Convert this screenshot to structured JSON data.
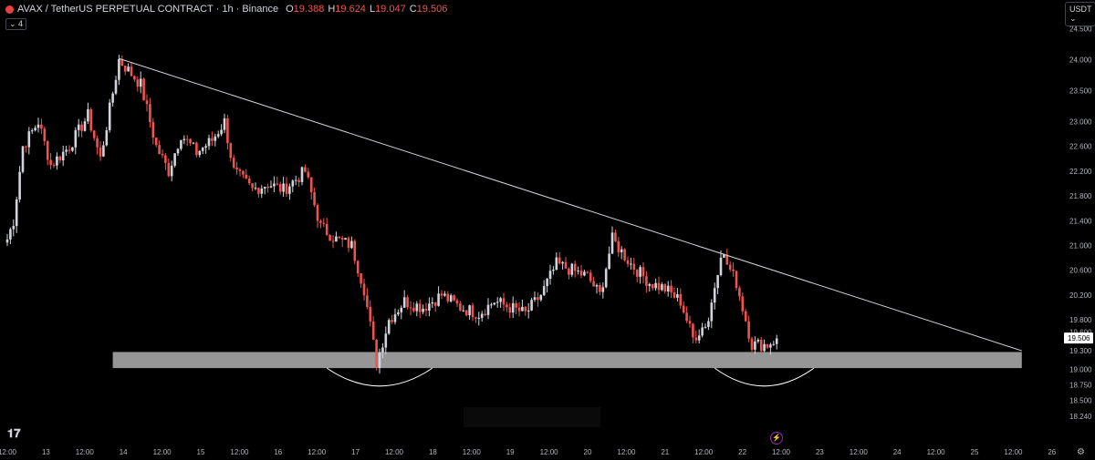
{
  "header": {
    "symbol": "AVAX / TetherUS PERPETUAL CONTRACT · 1h · Binance",
    "o_label": "O",
    "o_value": "19.388",
    "h_label": "H",
    "h_value": "19.624",
    "l_label": "L",
    "l_value": "19.047",
    "c_label": "C",
    "c_value": "19.506",
    "indicators_toggle": "⌄ 4",
    "currency": "USDT ⌄"
  },
  "colors": {
    "up": "#d1d4dc",
    "down": "#ef5350",
    "line": "#d1d4dc",
    "zone": "#9e9e9e",
    "background": "#000000"
  },
  "icons": {
    "logo": "tradingview-logo-icon",
    "settings": "gear-icon",
    "alert": "lightning-icon"
  },
  "chart_data": {
    "type": "candlestick",
    "interval": "1h",
    "ylim": [
      18.08,
      24.7
    ],
    "y_ticks": [
      "24.500",
      "24.000",
      "23.500",
      "23.000",
      "22.600",
      "22.200",
      "21.800",
      "21.400",
      "21.000",
      "20.600",
      "20.200",
      "19.800",
      "19.600",
      "19.300",
      "19.000",
      "18.750",
      "18.500",
      "18.240"
    ],
    "x_ticks": [
      "12:00",
      "13",
      "12:00",
      "14",
      "12:00",
      "15",
      "12:00",
      "16",
      "12:00",
      "17",
      "12:00",
      "18",
      "12:00",
      "19",
      "12:00",
      "20",
      "12:00",
      "21",
      "12:00",
      "22",
      "12:00",
      "23",
      "12:00",
      "24",
      "12:00",
      "25",
      "12:00",
      "26"
    ],
    "last_price": "19.506",
    "close_path": [
      [
        0,
        21.1
      ],
      [
        2,
        21.4
      ],
      [
        5,
        22.6
      ],
      [
        10,
        23.0
      ],
      [
        14,
        22.3
      ],
      [
        20,
        22.6
      ],
      [
        26,
        23.1
      ],
      [
        30,
        22.4
      ],
      [
        36,
        24.0
      ],
      [
        43,
        23.6
      ],
      [
        48,
        22.6
      ],
      [
        52,
        22.2
      ],
      [
        56,
        22.8
      ],
      [
        61,
        22.5
      ],
      [
        66,
        22.7
      ],
      [
        70,
        23.0
      ],
      [
        73,
        22.2
      ],
      [
        79,
        21.9
      ],
      [
        84,
        22.0
      ],
      [
        89,
        21.9
      ],
      [
        96,
        22.2
      ],
      [
        101,
        21.3
      ],
      [
        106,
        21.1
      ],
      [
        111,
        21.0
      ],
      [
        115,
        20.3
      ],
      [
        119,
        19.1
      ],
      [
        123,
        19.8
      ],
      [
        128,
        20.1
      ],
      [
        134,
        20.0
      ],
      [
        140,
        20.2
      ],
      [
        146,
        20.0
      ],
      [
        152,
        19.9
      ],
      [
        157,
        20.1
      ],
      [
        162,
        20.0
      ],
      [
        167,
        19.9
      ],
      [
        172,
        20.2
      ],
      [
        177,
        20.7
      ],
      [
        182,
        20.6
      ],
      [
        187,
        20.5
      ],
      [
        191,
        20.2
      ],
      [
        195,
        21.1
      ],
      [
        201,
        20.7
      ],
      [
        207,
        20.4
      ],
      [
        212,
        20.3
      ],
      [
        217,
        20.1
      ],
      [
        221,
        19.5
      ],
      [
        226,
        19.8
      ],
      [
        230,
        20.9
      ],
      [
        235,
        20.4
      ],
      [
        240,
        19.4
      ],
      [
        245,
        19.4
      ],
      [
        248,
        19.5
      ]
    ],
    "trendline": {
      "from": [
        36,
        24.02
      ],
      "to": [
        327,
        19.3
      ]
    },
    "support_zone": {
      "x_from": 34,
      "x_to": 327,
      "y_low": 19.02,
      "y_high": 19.28
    },
    "arcs": [
      {
        "x_from": 103,
        "x_to": 137,
        "y_top": 19.02,
        "y_bottom": 18.73
      },
      {
        "x_from": 228,
        "x_to": 260,
        "y_top": 19.02,
        "y_bottom": 18.73
      }
    ]
  }
}
